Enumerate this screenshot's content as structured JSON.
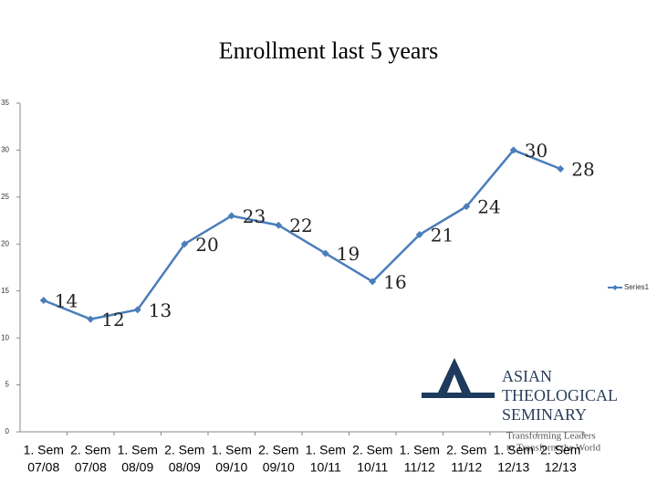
{
  "chart_data": {
    "type": "line",
    "title": "Enrollment last 5 years",
    "categories": [
      [
        "1. Sem",
        "07/08"
      ],
      [
        "2. Sem",
        "07/08"
      ],
      [
        "1. Sem",
        "08/09"
      ],
      [
        "2. Sem",
        "08/09"
      ],
      [
        "1. Sem",
        "09/10"
      ],
      [
        "2. Sem",
        "09/10"
      ],
      [
        "1. Sem",
        "10/11"
      ],
      [
        "2. Sem",
        "10/11"
      ],
      [
        "1. Sem",
        "11/12"
      ],
      [
        "2. Sem",
        "11/12"
      ],
      [
        "1. Sem",
        "12/13"
      ],
      [
        "2. Sem",
        "12/13"
      ]
    ],
    "series": [
      {
        "name": "Series1",
        "color": "#4a7ebb",
        "values": [
          14,
          12,
          13,
          20,
          23,
          22,
          19,
          16,
          21,
          24,
          30,
          28
        ]
      }
    ],
    "ylim": [
      0,
      35
    ],
    "yticks": [
      0,
      5,
      10,
      15,
      20,
      25,
      30,
      35
    ],
    "legend": "right"
  },
  "logo": {
    "lines": [
      "ASIAN",
      "THEOLOGICAL",
      "SEMINARY"
    ],
    "tagline": [
      "Transforming Leaders",
      "to Transform the World"
    ]
  }
}
